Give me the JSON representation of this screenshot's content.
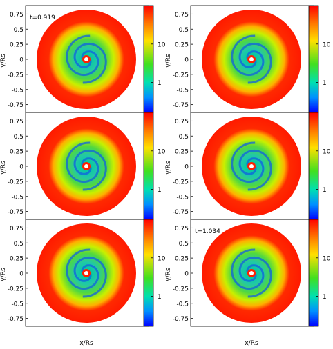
{
  "chart_data": [
    {
      "type": "heatmap",
      "ylabel": "y/Rs",
      "xlabel": "",
      "annotation": "t=0.919",
      "yticks": [
        "0.75",
        "0.5",
        "0.25",
        "0",
        "-0.25",
        "-0.5",
        "-0.75"
      ],
      "colorbar_ticks": [
        {
          "label": "10",
          "value": 10
        },
        {
          "label": "1",
          "value": 1
        }
      ],
      "colorbar_scale": "log"
    },
    {
      "type": "heatmap",
      "ylabel": "y/Rs",
      "xlabel": "",
      "annotation": "",
      "yticks": [
        "0.75",
        "0.5",
        "0.25",
        "0",
        "-0.25",
        "-0.5",
        "-0.75"
      ],
      "colorbar_ticks": [
        {
          "label": "10",
          "value": 10
        },
        {
          "label": "1",
          "value": 1
        }
      ],
      "colorbar_scale": "log"
    },
    {
      "type": "heatmap",
      "ylabel": "y/Rs",
      "xlabel": "",
      "annotation": "",
      "yticks": [
        "0.75",
        "0.5",
        "0.25",
        "0",
        "-0.25",
        "-0.5",
        "-0.75"
      ],
      "colorbar_ticks": [
        {
          "label": "10",
          "value": 10
        },
        {
          "label": "1",
          "value": 1
        }
      ],
      "colorbar_scale": "log"
    },
    {
      "type": "heatmap",
      "ylabel": "y/Rs",
      "xlabel": "",
      "annotation": "",
      "yticks": [
        "0.75",
        "0.5",
        "0.25",
        "0",
        "-0.25",
        "-0.5",
        "-0.75"
      ],
      "colorbar_ticks": [
        {
          "label": "10",
          "value": 10
        },
        {
          "label": "1",
          "value": 1
        }
      ],
      "colorbar_scale": "log"
    },
    {
      "type": "heatmap",
      "ylabel": "y/Rs",
      "xlabel": "x/Rs",
      "annotation": "",
      "yticks": [
        "0.75",
        "0.5",
        "0.25",
        "0",
        "-0.25",
        "-0.5",
        "-0.75"
      ],
      "colorbar_ticks": [
        {
          "label": "10",
          "value": 10
        },
        {
          "label": "1",
          "value": 1
        }
      ],
      "colorbar_scale": "log"
    },
    {
      "type": "heatmap",
      "ylabel": "y/Rs",
      "xlabel": "x/Rs",
      "annotation": "t=1.034",
      "yticks": [
        "0.75",
        "0.5",
        "0.25",
        "0",
        "-0.25",
        "-0.5",
        "-0.75"
      ],
      "colorbar_ticks": [
        {
          "label": "10",
          "value": 10
        },
        {
          "label": "1",
          "value": 1
        }
      ],
      "colorbar_scale": "log"
    }
  ],
  "colors": {
    "outer": "#ff1a00",
    "colorbar": [
      "#ff0000",
      "#ff7f00",
      "#ffff00",
      "#40e020",
      "#00e0c0",
      "#0060ff",
      "#0000ff"
    ]
  }
}
